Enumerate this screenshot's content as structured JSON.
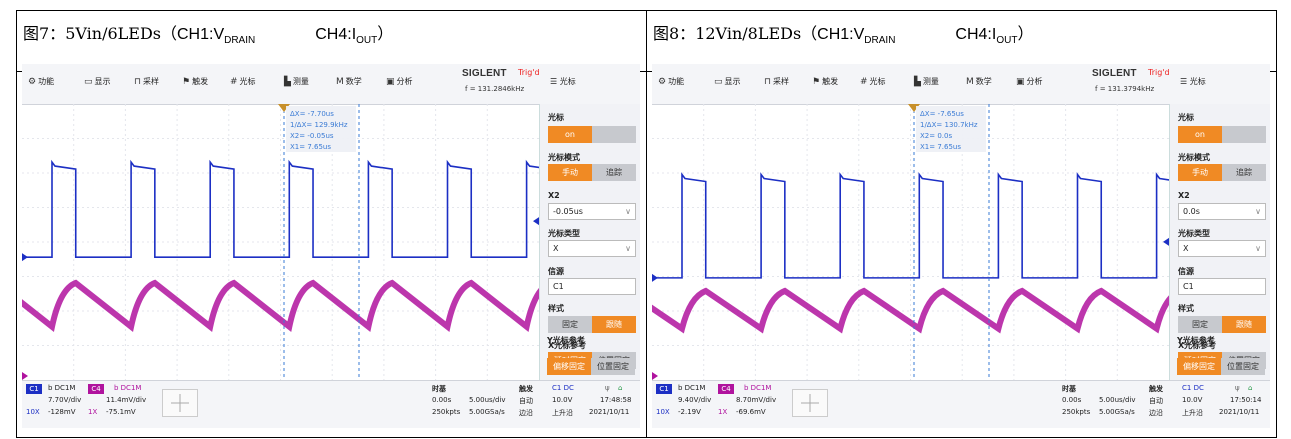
{
  "scopes": [
    {
      "caption": {
        "prefix": "图7：",
        "main": "5Vin/6LEDs（",
        "ch1": "CH1:V",
        "ch1_sub": "DRAIN",
        "ch4": "CH4:I",
        "ch4_sub": "OUT",
        "close": "）"
      },
      "menu": [
        {
          "icon": "⚙",
          "label": "功能"
        },
        {
          "icon": "▭",
          "label": "显示"
        },
        {
          "icon": "⊓",
          "label": "采样"
        },
        {
          "icon": "⚑",
          "label": "触发"
        },
        {
          "icon": "#",
          "label": "光标"
        },
        {
          "icon": "▙",
          "label": "测量"
        },
        {
          "icon": "M",
          "label": "数学"
        },
        {
          "icon": "▣",
          "label": "分析"
        }
      ],
      "brand": "SIGLENT",
      "trig_status": "Trig'd",
      "frequency": "f = 131.2846kHz",
      "right_header": "光标",
      "cursor_readouts": [
        "ΔX= -7.70us",
        "1/ΔX= 129.9kHz",
        "X2= -0.05us",
        "X1= 7.65us"
      ],
      "panel": {
        "cursor_label": "光标",
        "on_label": "on",
        "mode_label": "光标模式",
        "manual": "手动",
        "track": "追踪",
        "x2_label": "X2",
        "x2_value": "-0.05us",
        "type_label": "光标类型",
        "type_value": "X",
        "source_label": "信源",
        "source_value": "C1",
        "style_label": "样式",
        "fixed": "固定",
        "follow": "跟随",
        "xref_label": "X光标参考",
        "xref_a": "延时固定",
        "xref_b": "位置固定",
        "yref_label": "Y光标参考",
        "yref_a": "偏移固定",
        "yref_b": "位置固定"
      },
      "ch1": {
        "badge": "C1",
        "coupling": "b DC1M",
        "scale": "7.70V/div",
        "probe": "10X",
        "offset": "-128mV"
      },
      "ch4": {
        "badge": "C4",
        "coupling": "b DC1M",
        "scale": "11.4mV/div",
        "probe": "1X",
        "offset": "-75.1mV"
      },
      "timebase": {
        "label": "时基",
        "delay": "0.00s",
        "per_div": "5.00us/div",
        "points": "250kpts",
        "rate": "5.00GSa/s"
      },
      "trigger": {
        "label": "触发",
        "mode": "自动",
        "edge": "边沿",
        "channel": "C1 DC",
        "level": "10.0V",
        "slope": "上升沿"
      },
      "clock": {
        "time": "17:48:58",
        "date": "2021/10/11"
      },
      "traces": {
        "blue_high": 0.3,
        "blue_low": 0.74,
        "ground": 0.74,
        "magenta_top": 0.8,
        "magenta_bottom": 1.05
      }
    },
    {
      "caption": {
        "prefix": "图8：",
        "main": "12Vin/8LEDs（",
        "ch1": "CH1:V",
        "ch1_sub": "DRAIN",
        "ch4": "CH4:I",
        "ch4_sub": "OUT",
        "close": "）"
      },
      "menu": [
        {
          "icon": "⚙",
          "label": "功能"
        },
        {
          "icon": "▭",
          "label": "显示"
        },
        {
          "icon": "⊓",
          "label": "采样"
        },
        {
          "icon": "⚑",
          "label": "触发"
        },
        {
          "icon": "#",
          "label": "光标"
        },
        {
          "icon": "▙",
          "label": "测量"
        },
        {
          "icon": "M",
          "label": "数学"
        },
        {
          "icon": "▣",
          "label": "分析"
        }
      ],
      "brand": "SIGLENT",
      "trig_status": "Trig'd",
      "frequency": "f = 131.3794kHz",
      "right_header": "光标",
      "cursor_readouts": [
        "ΔX= -7.65us",
        "1/ΔX= 130.7kHz",
        "X2= 0.0s",
        "X1= 7.65us"
      ],
      "panel": {
        "cursor_label": "光标",
        "on_label": "on",
        "mode_label": "光标模式",
        "manual": "手动",
        "track": "追踪",
        "x2_label": "X2",
        "x2_value": "0.0s",
        "type_label": "光标类型",
        "type_value": "X",
        "source_label": "信源",
        "source_value": "C1",
        "style_label": "样式",
        "fixed": "固定",
        "follow": "跟随",
        "xref_label": "X光标参考",
        "xref_a": "延时固定",
        "xref_b": "位置固定",
        "yref_label": "Y光标参考",
        "yref_a": "偏移固定",
        "yref_b": "位置固定"
      },
      "ch1": {
        "badge": "C1",
        "coupling": "b DC1M",
        "scale": "9.40V/div",
        "probe": "10X",
        "offset": "-2.19V"
      },
      "ch4": {
        "badge": "C4",
        "coupling": "b DC1M",
        "scale": "8.70mV/div",
        "probe": "1X",
        "offset": "-69.6mV"
      },
      "timebase": {
        "label": "时基",
        "delay": "0.00s",
        "per_div": "5.00us/div",
        "points": "250kpts",
        "rate": "5.00GSa/s"
      },
      "trigger": {
        "label": "触发",
        "mode": "自动",
        "edge": "边沿",
        "channel": "C1 DC",
        "level": "10.0V",
        "slope": "上升沿"
      },
      "clock": {
        "time": "17:50:14",
        "date": "2021/10/11"
      },
      "traces": {
        "blue_high": 0.36,
        "blue_low": 0.84,
        "ground": 0.84,
        "magenta_top": 0.84,
        "magenta_bottom": 1.06
      }
    }
  ],
  "colors": {
    "ch1": "#1c2fc4",
    "ch4": "#b0139e",
    "accent": "#f08a24",
    "cursor": "#3a7bd5",
    "trigger": "#c8902a"
  }
}
